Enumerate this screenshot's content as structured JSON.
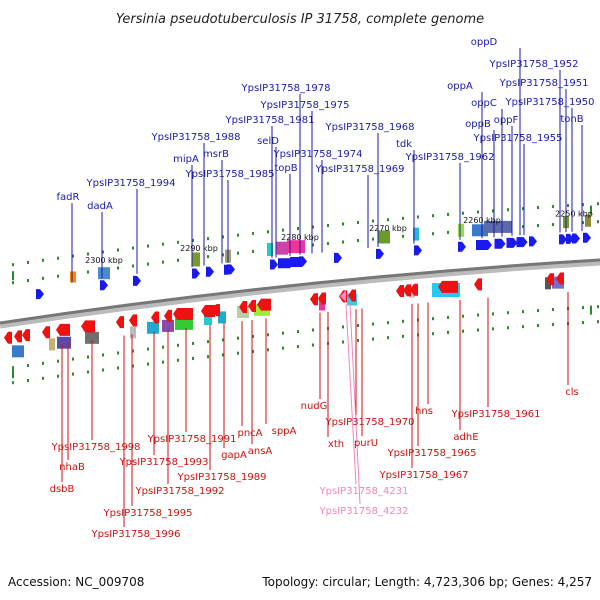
{
  "title": "Yersinia pseudotuberculosis IP 31758, complete genome",
  "footer": {
    "accession": "Accession: NC_009708",
    "summary": "Topology: circular; Length: 4,723,306 bp; Genes: 4,257"
  },
  "scale": [
    "2300 kbp",
    "2290 kbp",
    "2280 kbp",
    "2270 kbp",
    "2260 kbp",
    "2250 kbp"
  ],
  "colors": {
    "forward_label": "#1a1aaa",
    "reverse_label": "#cc1111",
    "pseudo_label": "#ee88bb",
    "forward_arrow": "#1a1aee",
    "reverse_arrow": "#ee1111",
    "backbone": "#888888",
    "tick": "#2a8a2a"
  },
  "forward_genes": [
    "fadR",
    "dadA",
    "YpsIP31758_1994",
    "mipA",
    "YpsIP31758_1988",
    "msrB",
    "YpsIP31758_1985",
    "YpsIP31758_1981",
    "selD",
    "YpsIP31758_1978",
    "topB",
    "YpsIP31758_1975",
    "YpsIP31758_1974",
    "YpsIP31758_1969",
    "YpsIP31758_1968",
    "tdk",
    "YpsIP31758_1962",
    "oppA",
    "oppB",
    "oppC",
    "oppF",
    "oppD",
    "YpsIP31758_1955",
    "YpsIP31758_1952",
    "YpsIP31758_1951",
    "YpsIP31758_1950",
    "tonB"
  ],
  "reverse_genes": [
    "dsbB",
    "nhaB",
    "YpsIP31758_1998",
    "YpsIP31758_1996",
    "YpsIP31758_1995",
    "YpsIP31758_1993",
    "YpsIP31758_1992",
    "YpsIP31758_1991",
    "YpsIP31758_1989",
    "gapA",
    "pncA",
    "ansA",
    "sppA",
    "nudG",
    "xth",
    "YpsIP31758_1970",
    "purU",
    "YpsIP31758_1967",
    "YpsIP31758_1965",
    "hns",
    "adhE",
    "YpsIP31758_1961",
    "cls"
  ],
  "pseudo_genes": [
    "YpsIP31758_4231",
    "YpsIP31758_4232"
  ]
}
